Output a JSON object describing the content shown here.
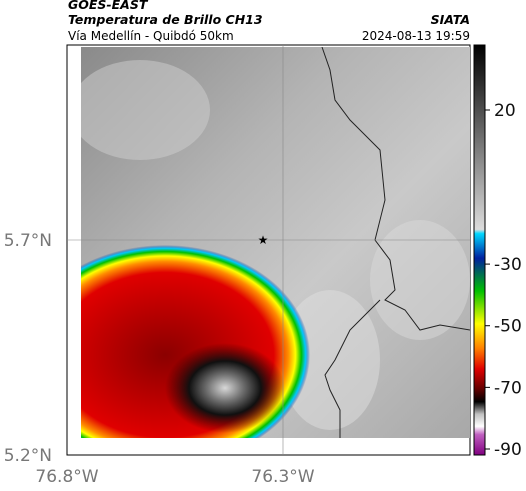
{
  "header": {
    "satellite": "GOES-EAST",
    "product": "Temperatura de Brillo CH13",
    "region": "Vía Medellín - Quibdó 50km",
    "source": "SIATA",
    "datetime": "2024-08-13 19:59"
  },
  "map": {
    "lat_labels": [
      "5.7°N",
      "5.2°N"
    ],
    "lon_labels": [
      "76.8°W",
      "76.3°W"
    ]
  },
  "colorbar": {
    "ticks": [
      20,
      -30,
      -50,
      -70,
      -90
    ]
  }
}
